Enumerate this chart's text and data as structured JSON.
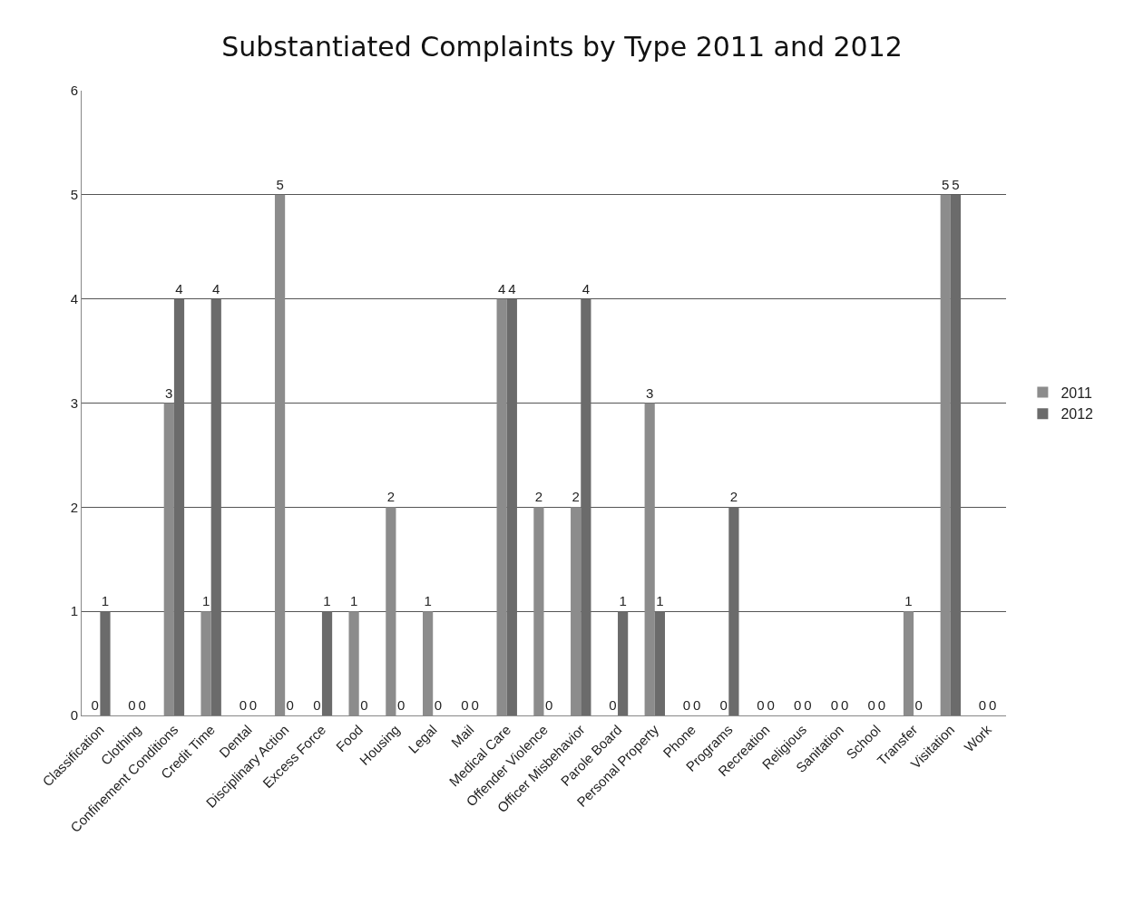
{
  "chart_data": {
    "type": "bar",
    "title": "Substantiated Complaints by Type 2011 and 2012",
    "categories": [
      "Classification",
      "Clothing",
      "Confinement Conditions",
      "Credit Time",
      "Dental",
      "Disciplinary Action",
      "Excess Force",
      "Food",
      "Housing",
      "Legal",
      "Mail",
      "Medical Care",
      "Offender Violence",
      "Officer Misbehavior",
      "Parole Board",
      "Personal Property",
      "Phone",
      "Programs",
      "Recreation",
      "Religious",
      "Sanitation",
      "School",
      "Transfer",
      "Visitation",
      "Work"
    ],
    "series": [
      {
        "name": "2011",
        "color": "#8c8c8c",
        "values": [
          0,
          0,
          3,
          1,
          0,
          5,
          0,
          1,
          2,
          1,
          0,
          4,
          2,
          2,
          0,
          3,
          0,
          0,
          0,
          0,
          0,
          0,
          1,
          5,
          0
        ]
      },
      {
        "name": "2012",
        "color": "#6b6b6b",
        "values": [
          1,
          0,
          4,
          4,
          0,
          0,
          1,
          0,
          0,
          0,
          0,
          4,
          0,
          4,
          1,
          1,
          0,
          2,
          0,
          0,
          0,
          0,
          0,
          5,
          0
        ]
      }
    ],
    "ylim": [
      0,
      6
    ],
    "yticks": [
      0,
      1,
      2,
      3,
      4,
      5,
      6
    ],
    "grid": "y",
    "legend": "right",
    "data_labels": true
  }
}
